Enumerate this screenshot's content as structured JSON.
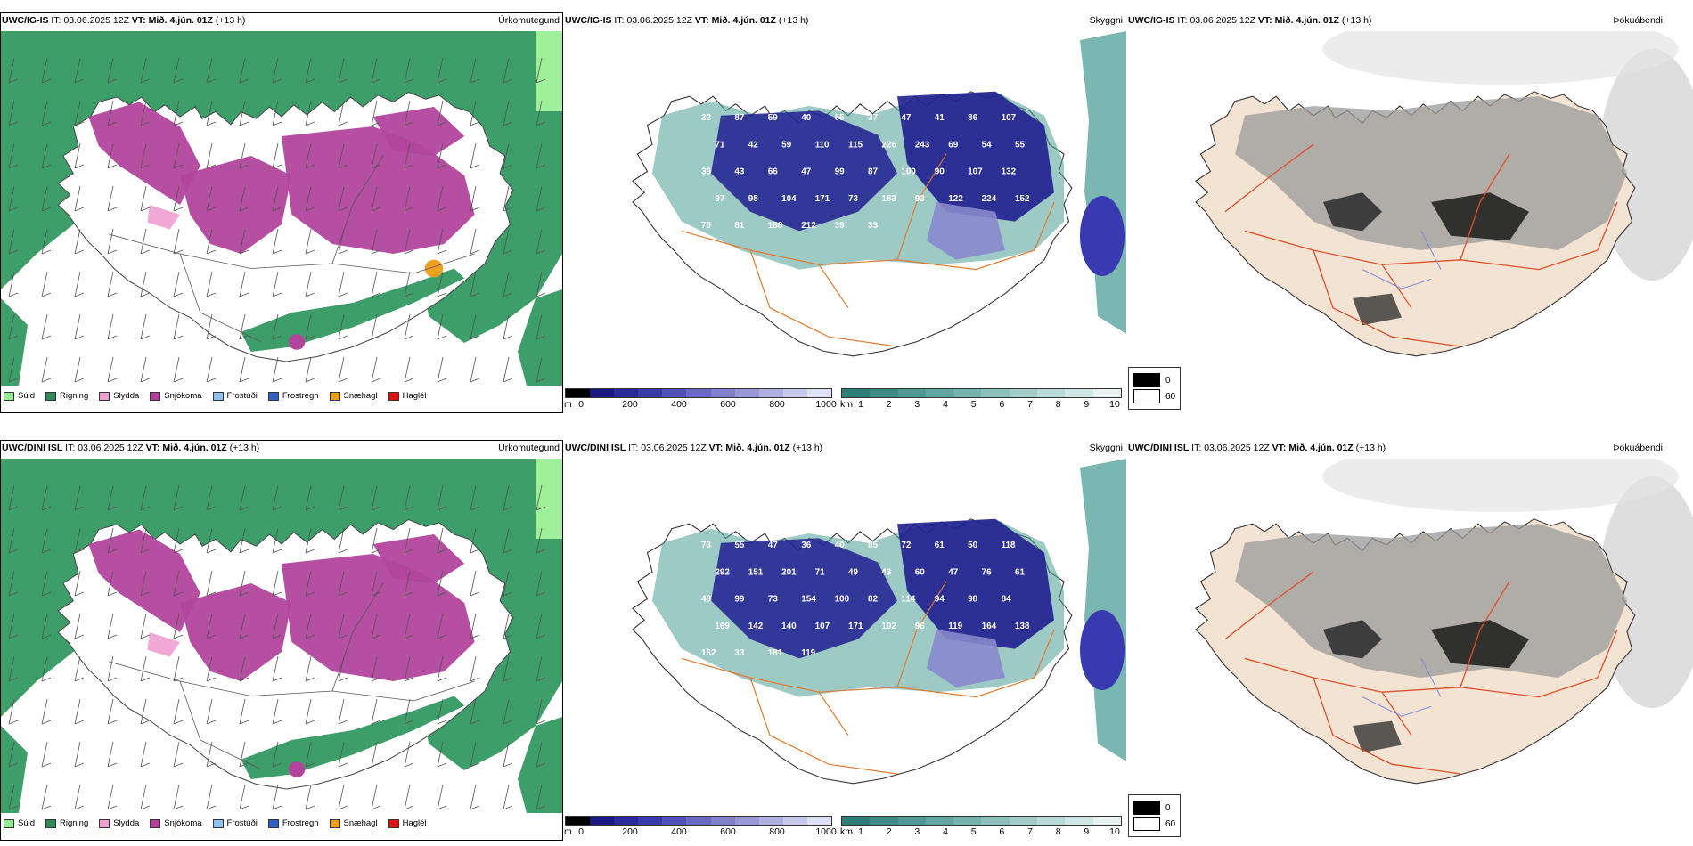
{
  "rows": [
    {
      "model": "UWC/IG-IS",
      "it_label": "IT:",
      "it_value": "03.06.2025 12Z",
      "vt_label": "VT:",
      "vt_value": "Mið. 4.jún. 01Z",
      "lead": "(+13 h)"
    },
    {
      "model": "UWC/DINI ISL",
      "it_label": "IT:",
      "it_value": "03.06.2025 12Z",
      "vt_label": "VT:",
      "vt_value": "Mið. 4.jún. 01Z",
      "lead": "(+13 h)"
    }
  ],
  "panels": {
    "precip_label": "Úrkomutegund",
    "ceiling_label": "Skyggni",
    "fog_label": "Þokuábendi"
  },
  "precip_legend": [
    {
      "label": "Súld",
      "color": "#90ee90"
    },
    {
      "label": "Rigning",
      "color": "#2e8b57"
    },
    {
      "label": "Slydda",
      "color": "#f0a0d0"
    },
    {
      "label": "Snjókoma",
      "color": "#b0409a"
    },
    {
      "label": "Frostúði",
      "color": "#90c0f0"
    },
    {
      "label": "Frostregn",
      "color": "#3060c0"
    },
    {
      "label": "Snæhagl",
      "color": "#f0a020"
    },
    {
      "label": "Haglél",
      "color": "#e01010"
    }
  ],
  "colors": {
    "rain": "#3d9e6a",
    "snow": "#b2449c",
    "sleet": "#f2a8d4",
    "teal": "#4e9e98",
    "blue_dark": "#1f1f8f",
    "road": "#e07a30",
    "land_fog": "#f3e3d3"
  },
  "cloud_base_scale": {
    "unit": "m",
    "ticks": [
      "0",
      "200",
      "400",
      "600",
      "800",
      "1000"
    ],
    "colors": [
      "#000000",
      "#1a1a80",
      "#2a2a98",
      "#3a3aa8",
      "#5050b8",
      "#6a6ac4",
      "#8080cc",
      "#9898d6",
      "#b0b0e0",
      "#c8c8ea",
      "#e0e0f4"
    ]
  },
  "visibility_scale": {
    "unit": "km",
    "ticks": [
      "1",
      "2",
      "3",
      "4",
      "5",
      "6",
      "7",
      "8",
      "9",
      "10"
    ],
    "colors": [
      "#2f7d78",
      "#3e8a85",
      "#4f9893",
      "#62a6a1",
      "#76b3ae",
      "#8bc0bb",
      "#a1ccc8",
      "#b8d9d5",
      "#d0e6e3",
      "#e8f3f1"
    ]
  },
  "fog_scale": {
    "items": [
      {
        "label": "0",
        "color": "#000000"
      },
      {
        "label": "60",
        "color": "#ffffff"
      }
    ]
  },
  "labels_top": [
    "32",
    "87",
    "59",
    "40",
    "65",
    "37",
    "47",
    "41",
    "86",
    "107",
    "71",
    "42",
    "59",
    "110",
    "115",
    "226",
    "243",
    "69",
    "54",
    "55",
    "39",
    "43",
    "66",
    "47",
    "99",
    "87",
    "100",
    "90",
    "107",
    "132",
    "97",
    "98",
    "104",
    "171",
    "73",
    "183",
    "93",
    "122",
    "224",
    "152",
    "70",
    "81",
    "188",
    "212",
    "39",
    "33"
  ],
  "labels_bottom": [
    "73",
    "55",
    "47",
    "36",
    "40",
    "85",
    "72",
    "61",
    "50",
    "118",
    "292",
    "151",
    "201",
    "71",
    "49",
    "43",
    "60",
    "47",
    "76",
    "61",
    "48",
    "99",
    "73",
    "154",
    "100",
    "82",
    "114",
    "94",
    "98",
    "84",
    "169",
    "142",
    "140",
    "107",
    "171",
    "102",
    "96",
    "119",
    "164",
    "138",
    "162",
    "33",
    "181",
    "119"
  ]
}
